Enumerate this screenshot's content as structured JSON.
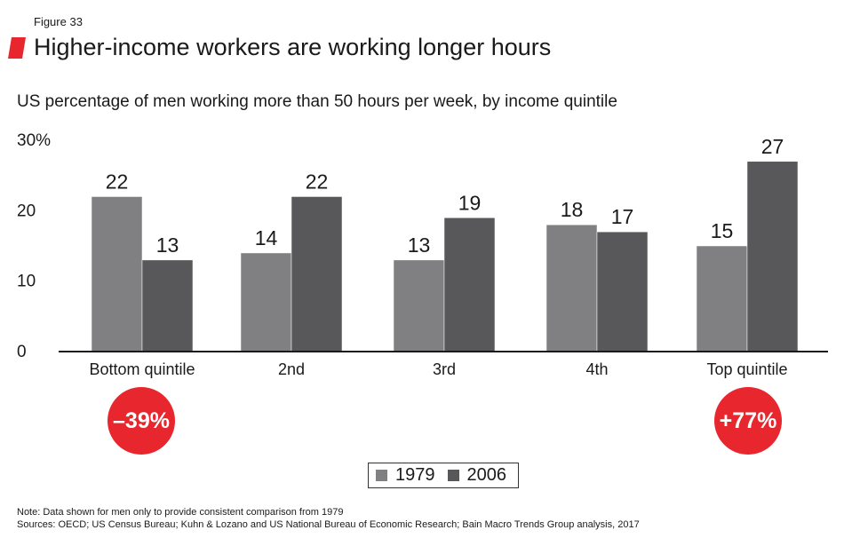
{
  "figure_label": "Figure 33",
  "title": "Higher-income workers are working longer hours",
  "subtitle": "US percentage of men working more than 50 hours per week, by income quintile",
  "colors": {
    "accent": "#e8262e",
    "series_1979": "#808083",
    "series_2006": "#58585a",
    "axis": "#1a1a1a"
  },
  "chart_data": {
    "type": "bar",
    "categories": [
      "Bottom quintile",
      "2nd",
      "3rd",
      "4th",
      "Top quintile"
    ],
    "series": [
      {
        "name": "1979",
        "values": [
          22,
          14,
          13,
          18,
          15
        ]
      },
      {
        "name": "2006",
        "values": [
          13,
          22,
          19,
          17,
          27
        ]
      }
    ],
    "ylim": [
      0,
      30
    ],
    "yticks": [
      "0",
      "10",
      "20",
      "30%"
    ],
    "legend_position": "bottom-center",
    "grid": false
  },
  "badges": [
    {
      "category": "Bottom quintile",
      "text": "–39%"
    },
    {
      "category": "Top quintile",
      "text": "+77%"
    }
  ],
  "note": "Note: Data shown for men only to provide consistent comparison from 1979",
  "sources": "Sources: OECD; US Census Bureau; Kuhn & Lozano and US National Bureau of Economic Research; Bain Macro Trends Group analysis, 2017"
}
